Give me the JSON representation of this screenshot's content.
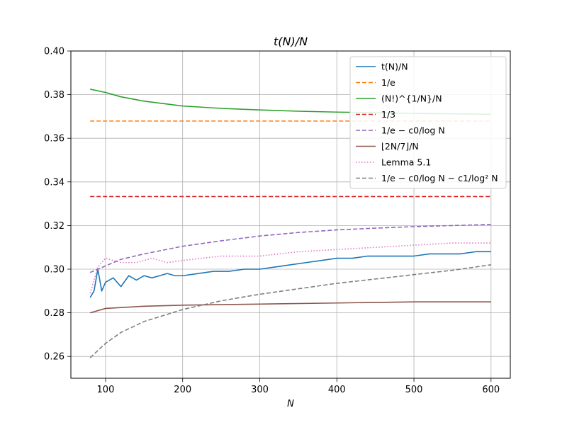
{
  "chart_data": {
    "type": "line",
    "title": "t(N)/N",
    "xlabel": "N",
    "ylabel": "",
    "xlim": [
      55,
      625
    ],
    "ylim": [
      0.25,
      0.4
    ],
    "xticks": [
      100,
      200,
      300,
      400,
      500,
      600
    ],
    "xtick_labels": [
      "100",
      "200",
      "300",
      "400",
      "500",
      "600"
    ],
    "yticks": [
      0.26,
      0.28,
      0.3,
      0.32,
      0.34,
      0.36,
      0.38,
      0.4
    ],
    "ytick_labels": [
      "0.26",
      "0.28",
      "0.30",
      "0.32",
      "0.34",
      "0.36",
      "0.38",
      "0.40"
    ],
    "grid": true,
    "legend_position": "top-right",
    "series": [
      {
        "name": "t(N)/N",
        "color": "#1f77b4",
        "style": "solid",
        "x": [
          80,
          85,
          90,
          95,
          100,
          110,
          120,
          130,
          140,
          150,
          160,
          170,
          180,
          190,
          200,
          220,
          240,
          260,
          280,
          300,
          320,
          340,
          360,
          380,
          400,
          420,
          440,
          460,
          480,
          500,
          520,
          540,
          560,
          580,
          600
        ],
        "y": [
          0.287,
          0.29,
          0.3,
          0.29,
          0.294,
          0.296,
          0.292,
          0.297,
          0.295,
          0.297,
          0.296,
          0.297,
          0.298,
          0.297,
          0.297,
          0.298,
          0.299,
          0.299,
          0.3,
          0.3,
          0.301,
          0.302,
          0.303,
          0.304,
          0.305,
          0.305,
          0.306,
          0.306,
          0.306,
          0.306,
          0.307,
          0.307,
          0.307,
          0.308,
          0.308
        ]
      },
      {
        "name": "1/e",
        "color": "#ff7f0e",
        "style": "dashed",
        "x": [
          80,
          600
        ],
        "y": [
          0.3679,
          0.3679
        ]
      },
      {
        "name": "(N!)^{1/N}/N",
        "color": "#2ca02c",
        "style": "solid",
        "x": [
          80,
          100,
          120,
          150,
          200,
          250,
          300,
          350,
          400,
          450,
          500,
          550,
          600
        ],
        "y": [
          0.3825,
          0.381,
          0.379,
          0.377,
          0.3748,
          0.3737,
          0.373,
          0.3724,
          0.372,
          0.3717,
          0.3714,
          0.3712,
          0.371
        ]
      },
      {
        "name": "1/3",
        "color": "#d62728",
        "style": "dashed",
        "x": [
          80,
          600
        ],
        "y": [
          0.3333,
          0.3333
        ]
      },
      {
        "name": "1/e − c0/log N",
        "color": "#9467bd",
        "style": "dashed",
        "x": [
          80,
          100,
          120,
          150,
          200,
          250,
          300,
          350,
          400,
          450,
          500,
          550,
          600
        ],
        "y": [
          0.2985,
          0.3015,
          0.3045,
          0.307,
          0.3105,
          0.313,
          0.3152,
          0.3168,
          0.318,
          0.3188,
          0.3195,
          0.32,
          0.3205
        ]
      },
      {
        "name": "⌊2N/7⌋/N",
        "color": "#8c564b",
        "style": "solid",
        "x": [
          80,
          100,
          150,
          200,
          300,
          400,
          500,
          600
        ],
        "y": [
          0.28,
          0.282,
          0.283,
          0.2835,
          0.284,
          0.2845,
          0.285,
          0.285
        ]
      },
      {
        "name": "Lemma 5.1",
        "color": "#e377c2",
        "style": "dotted",
        "x": [
          80,
          90,
          100,
          120,
          140,
          160,
          180,
          200,
          250,
          300,
          350,
          400,
          450,
          500,
          550,
          600
        ],
        "y": [
          0.289,
          0.301,
          0.305,
          0.303,
          0.303,
          0.305,
          0.303,
          0.304,
          0.306,
          0.306,
          0.308,
          0.309,
          0.31,
          0.311,
          0.312,
          0.312
        ]
      },
      {
        "name": "1/e − c0/log N − c1/log² N",
        "color": "#7f7f7f",
        "style": "dashed",
        "x": [
          80,
          100,
          120,
          150,
          200,
          250,
          300,
          350,
          400,
          450,
          500,
          550,
          600
        ],
        "y": [
          0.2594,
          0.266,
          0.271,
          0.276,
          0.2815,
          0.2855,
          0.2885,
          0.291,
          0.2935,
          0.2955,
          0.2975,
          0.2995,
          0.302
        ]
      }
    ]
  }
}
